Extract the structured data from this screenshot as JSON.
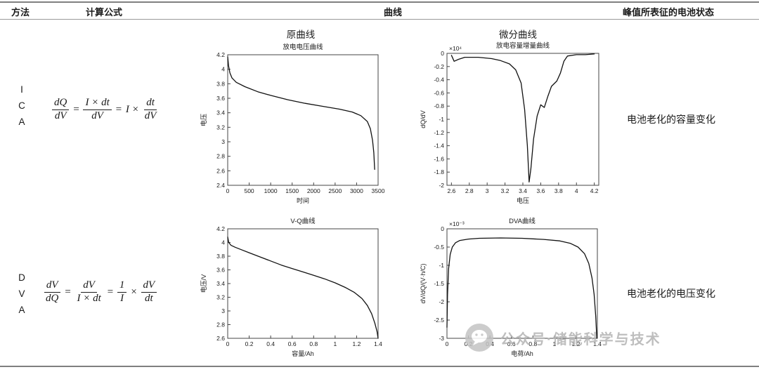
{
  "table": {
    "headers": {
      "method": "方法",
      "formula": "计算公式",
      "curve": "曲线",
      "state": "峰值所表征的电池状态"
    },
    "subheaders": {
      "original": "原曲线",
      "differential": "微分曲线"
    }
  },
  "rows": [
    {
      "method": "ICA",
      "method_letters": [
        "I",
        "C",
        "A"
      ],
      "formula": [
        {
          "t": "frac",
          "num": "dQ",
          "den": "dV"
        },
        {
          "t": "txt",
          "v": "="
        },
        {
          "t": "frac",
          "num": "I × dt",
          "den": "dV"
        },
        {
          "t": "txt",
          "v": "="
        },
        {
          "t": "txt",
          "v": "I ×"
        },
        {
          "t": "frac",
          "num": "dt",
          "den": "dV"
        }
      ],
      "state": "电池老化的容量变化"
    },
    {
      "method": "DVA",
      "method_letters": [
        "D",
        "V",
        "A"
      ],
      "formula": [
        {
          "t": "frac",
          "num": "dV",
          "den": "dQ"
        },
        {
          "t": "txt",
          "v": "="
        },
        {
          "t": "frac",
          "num": "dV",
          "den": "I × dt"
        },
        {
          "t": "txt",
          "v": "="
        },
        {
          "t": "frac",
          "num": "1",
          "den": "I"
        },
        {
          "t": "txt",
          "v": "×"
        },
        {
          "t": "frac",
          "num": "dV",
          "den": "dt"
        }
      ],
      "state": "电池老化的电压变化"
    }
  ],
  "watermark": {
    "text": "公众号·储能科学与技术"
  },
  "chart_data": [
    {
      "type": "line",
      "title": "放电电压曲线",
      "xlabel": "时间",
      "ylabel": "电压",
      "xlim": [
        0,
        3500
      ],
      "ylim": [
        2.4,
        4.2
      ],
      "xticks": [
        0,
        500,
        1000,
        1500,
        2000,
        2500,
        3000,
        3500
      ],
      "yticks": [
        2.4,
        2.6,
        2.8,
        3,
        3.2,
        3.4,
        3.6,
        3.8,
        4,
        4.2
      ],
      "exponent": "",
      "points": [
        [
          0,
          4.17
        ],
        [
          20,
          4.05
        ],
        [
          50,
          3.95
        ],
        [
          100,
          3.88
        ],
        [
          200,
          3.82
        ],
        [
          400,
          3.76
        ],
        [
          700,
          3.69
        ],
        [
          1000,
          3.64
        ],
        [
          1400,
          3.58
        ],
        [
          1800,
          3.53
        ],
        [
          2200,
          3.49
        ],
        [
          2600,
          3.45
        ],
        [
          2900,
          3.41
        ],
        [
          3100,
          3.36
        ],
        [
          3250,
          3.28
        ],
        [
          3320,
          3.18
        ],
        [
          3370,
          3.02
        ],
        [
          3400,
          2.85
        ],
        [
          3420,
          2.62
        ]
      ]
    },
    {
      "type": "line",
      "title": "放电容量增量曲线",
      "xlabel": "电压",
      "ylabel": "dQ/dV",
      "xlim": [
        2.55,
        4.25
      ],
      "ylim": [
        -2,
        0
      ],
      "xticks": [
        2.6,
        2.8,
        3,
        3.2,
        3.4,
        3.6,
        3.8,
        4,
        4.2
      ],
      "yticks": [
        0,
        -0.2,
        -0.4,
        -0.6,
        -0.8,
        -1,
        -1.2,
        -1.4,
        -1.6,
        -1.8,
        -2
      ],
      "exponent": "×10⁴",
      "points": [
        [
          2.6,
          -0.03
        ],
        [
          2.63,
          -0.12
        ],
        [
          2.68,
          -0.09
        ],
        [
          2.75,
          -0.06
        ],
        [
          2.9,
          -0.06
        ],
        [
          3.05,
          -0.08
        ],
        [
          3.15,
          -0.11
        ],
        [
          3.25,
          -0.16
        ],
        [
          3.32,
          -0.25
        ],
        [
          3.38,
          -0.45
        ],
        [
          3.42,
          -0.85
        ],
        [
          3.45,
          -1.4
        ],
        [
          3.47,
          -1.95
        ],
        [
          3.49,
          -1.75
        ],
        [
          3.52,
          -1.3
        ],
        [
          3.56,
          -0.95
        ],
        [
          3.6,
          -0.78
        ],
        [
          3.64,
          -0.82
        ],
        [
          3.68,
          -0.65
        ],
        [
          3.72,
          -0.5
        ],
        [
          3.78,
          -0.42
        ],
        [
          3.82,
          -0.3
        ],
        [
          3.86,
          -0.12
        ],
        [
          3.9,
          -0.04
        ],
        [
          4,
          -0.02
        ],
        [
          4.1,
          -0.02
        ],
        [
          4.2,
          -0.01
        ]
      ]
    },
    {
      "type": "line",
      "title": "V-Q曲线",
      "xlabel": "容量/Ah",
      "ylabel": "电压/V",
      "xlim": [
        0,
        1.4
      ],
      "ylim": [
        2.6,
        4.2
      ],
      "xticks": [
        0,
        0.2,
        0.4,
        0.6,
        0.8,
        1,
        1.2,
        1.4
      ],
      "yticks": [
        2.6,
        2.8,
        3,
        3.2,
        3.4,
        3.6,
        3.8,
        4,
        4.2
      ],
      "exponent": "",
      "points": [
        [
          0,
          4.08
        ],
        [
          0.01,
          4
        ],
        [
          0.03,
          3.96
        ],
        [
          0.07,
          3.93
        ],
        [
          0.12,
          3.9
        ],
        [
          0.2,
          3.85
        ],
        [
          0.3,
          3.79
        ],
        [
          0.4,
          3.73
        ],
        [
          0.5,
          3.67
        ],
        [
          0.6,
          3.62
        ],
        [
          0.7,
          3.57
        ],
        [
          0.8,
          3.52
        ],
        [
          0.9,
          3.47
        ],
        [
          1,
          3.41
        ],
        [
          1.1,
          3.34
        ],
        [
          1.18,
          3.27
        ],
        [
          1.25,
          3.18
        ],
        [
          1.3,
          3.08
        ],
        [
          1.34,
          2.96
        ],
        [
          1.37,
          2.82
        ],
        [
          1.39,
          2.7
        ],
        [
          1.4,
          2.6
        ]
      ]
    },
    {
      "type": "line",
      "title": "DVA曲线",
      "xlabel": "电荷/Ah",
      "ylabel": "dV/dQ/(V·h/C)",
      "xlim": [
        0,
        1.4
      ],
      "ylim": [
        -3,
        0
      ],
      "xticks": [
        0,
        0.2,
        0.4,
        0.6,
        0.8,
        1,
        1.2,
        1.4
      ],
      "yticks": [
        0,
        -0.5,
        -1,
        -1.5,
        -2,
        -2.5,
        -3
      ],
      "exponent": "×10⁻³",
      "points": [
        [
          0,
          -2.7
        ],
        [
          0.005,
          -1.8
        ],
        [
          0.015,
          -1.1
        ],
        [
          0.03,
          -0.7
        ],
        [
          0.05,
          -0.5
        ],
        [
          0.08,
          -0.38
        ],
        [
          0.12,
          -0.32
        ],
        [
          0.2,
          -0.28
        ],
        [
          0.3,
          -0.26
        ],
        [
          0.5,
          -0.25
        ],
        [
          0.7,
          -0.26
        ],
        [
          0.9,
          -0.29
        ],
        [
          1.05,
          -0.33
        ],
        [
          1.15,
          -0.4
        ],
        [
          1.22,
          -0.5
        ],
        [
          1.28,
          -0.68
        ],
        [
          1.32,
          -0.95
        ],
        [
          1.35,
          -1.35
        ],
        [
          1.37,
          -1.8
        ],
        [
          1.385,
          -2.4
        ],
        [
          1.395,
          -3
        ]
      ]
    }
  ]
}
